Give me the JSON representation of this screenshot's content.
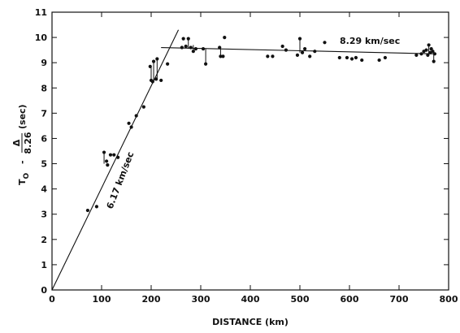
{
  "chart_data": {
    "type": "scatter",
    "xlabel": "DISTANCE (km)",
    "ylabel": {
      "main": "T",
      "sub": "O",
      "minus": "-",
      "frac_num": "Δ",
      "frac_den": "8.26",
      "unit": "(sec)"
    },
    "xlim": [
      0,
      800
    ],
    "ylim": [
      0,
      11
    ],
    "x_ticks": [
      0,
      100,
      200,
      300,
      400,
      500,
      600,
      700,
      800
    ],
    "y_ticks": [
      0,
      1,
      2,
      3,
      4,
      5,
      6,
      7,
      8,
      9,
      10,
      11
    ],
    "grid": false,
    "fit_lines": [
      {
        "label": "6.17 km/sec",
        "x": [
          0,
          255
        ],
        "y": [
          0,
          10.3
        ]
      },
      {
        "label": "8.29 km/sec",
        "x": [
          220,
          775
        ],
        "y": [
          9.6,
          9.35
        ]
      }
    ],
    "points": [
      {
        "x": 72,
        "y": 3.15
      },
      {
        "x": 90,
        "y": 3.3
      },
      {
        "x": 105,
        "y": 5.45
      },
      {
        "x": 110,
        "y": 5.1
      },
      {
        "x": 112,
        "y": 4.95
      },
      {
        "x": 118,
        "y": 5.35
      },
      {
        "x": 125,
        "y": 5.35
      },
      {
        "x": 133,
        "y": 5.25
      },
      {
        "x": 155,
        "y": 6.6
      },
      {
        "x": 160,
        "y": 6.45
      },
      {
        "x": 170,
        "y": 6.9
      },
      {
        "x": 185,
        "y": 7.25
      },
      {
        "x": 198,
        "y": 8.85
      },
      {
        "x": 200,
        "y": 8.3
      },
      {
        "x": 203,
        "y": 8.25
      },
      {
        "x": 205,
        "y": 9.05
      },
      {
        "x": 210,
        "y": 8.35
      },
      {
        "x": 212,
        "y": 9.15
      },
      {
        "x": 220,
        "y": 8.3
      },
      {
        "x": 233,
        "y": 8.95
      },
      {
        "x": 262,
        "y": 9.6
      },
      {
        "x": 265,
        "y": 9.95
      },
      {
        "x": 270,
        "y": 9.65
      },
      {
        "x": 275,
        "y": 9.95
      },
      {
        "x": 280,
        "y": 9.6
      },
      {
        "x": 285,
        "y": 9.45
      },
      {
        "x": 290,
        "y": 9.55
      },
      {
        "x": 305,
        "y": 9.55
      },
      {
        "x": 310,
        "y": 8.95
      },
      {
        "x": 338,
        "y": 9.6
      },
      {
        "x": 340,
        "y": 9.25
      },
      {
        "x": 345,
        "y": 9.25
      },
      {
        "x": 348,
        "y": 10.0
      },
      {
        "x": 435,
        "y": 9.25
      },
      {
        "x": 445,
        "y": 9.25
      },
      {
        "x": 465,
        "y": 9.65
      },
      {
        "x": 472,
        "y": 9.5
      },
      {
        "x": 495,
        "y": 9.3
      },
      {
        "x": 500,
        "y": 9.95
      },
      {
        "x": 505,
        "y": 9.4
      },
      {
        "x": 510,
        "y": 9.55
      },
      {
        "x": 520,
        "y": 9.25
      },
      {
        "x": 530,
        "y": 9.45
      },
      {
        "x": 550,
        "y": 9.8
      },
      {
        "x": 580,
        "y": 9.2
      },
      {
        "x": 595,
        "y": 9.2
      },
      {
        "x": 605,
        "y": 9.15
      },
      {
        "x": 613,
        "y": 9.2
      },
      {
        "x": 625,
        "y": 9.1
      },
      {
        "x": 660,
        "y": 9.1
      },
      {
        "x": 672,
        "y": 9.2
      },
      {
        "x": 735,
        "y": 9.3
      },
      {
        "x": 745,
        "y": 9.35
      },
      {
        "x": 750,
        "y": 9.45
      },
      {
        "x": 755,
        "y": 9.5
      },
      {
        "x": 758,
        "y": 9.3
      },
      {
        "x": 760,
        "y": 9.7
      },
      {
        "x": 763,
        "y": 9.4
      },
      {
        "x": 765,
        "y": 9.55
      },
      {
        "x": 768,
        "y": 9.45
      },
      {
        "x": 770,
        "y": 9.05
      },
      {
        "x": 772,
        "y": 9.35
      }
    ],
    "error_bars": [
      {
        "x": 105,
        "y1": 5.0,
        "y2": 5.45
      },
      {
        "x": 200,
        "y1": 8.25,
        "y2": 8.85
      },
      {
        "x": 205,
        "y1": 8.25,
        "y2": 9.05
      },
      {
        "x": 212,
        "y1": 8.3,
        "y2": 9.15
      },
      {
        "x": 275,
        "y1": 9.55,
        "y2": 9.95
      },
      {
        "x": 285,
        "y1": 9.4,
        "y2": 9.7
      },
      {
        "x": 310,
        "y1": 8.95,
        "y2": 9.55
      },
      {
        "x": 340,
        "y1": 9.25,
        "y2": 9.6
      },
      {
        "x": 500,
        "y1": 9.4,
        "y2": 9.95
      },
      {
        "x": 760,
        "y1": 9.3,
        "y2": 9.7
      },
      {
        "x": 770,
        "y1": 9.05,
        "y2": 9.45
      }
    ]
  }
}
